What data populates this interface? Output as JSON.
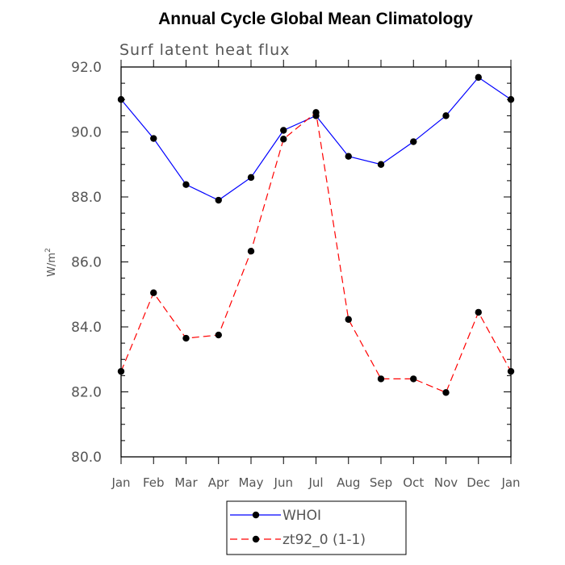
{
  "chart_data": {
    "type": "line",
    "title": "Annual Cycle Global Mean Climatology",
    "subtitle": "Surf latent heat flux",
    "ylabel": "W/m",
    "ylabel_superscript": "2",
    "xlabel": "",
    "categories": [
      "Jan",
      "Feb",
      "Mar",
      "Apr",
      "May",
      "Jun",
      "Jul",
      "Aug",
      "Sep",
      "Oct",
      "Nov",
      "Dec",
      "Jan"
    ],
    "ylim": [
      80,
      92
    ],
    "yticks": [
      "80.0",
      "82.0",
      "84.0",
      "86.0",
      "88.0",
      "90.0",
      "92.0"
    ],
    "series": [
      {
        "name": "WHOI",
        "color": "#0000ff",
        "dash": "solid",
        "values": [
          91.0,
          89.8,
          88.38,
          87.9,
          88.6,
          90.05,
          90.5,
          89.25,
          89.0,
          89.7,
          90.5,
          91.68,
          91.0
        ]
      },
      {
        "name": "zt92_0 (1-1)",
        "color": "#ff0000",
        "dash": "dashed",
        "values": [
          82.63,
          85.05,
          83.65,
          83.75,
          86.33,
          89.78,
          90.6,
          84.23,
          82.4,
          82.4,
          81.98,
          84.45,
          82.63
        ]
      }
    ],
    "legend_position": "bottom-center",
    "grid": false
  }
}
